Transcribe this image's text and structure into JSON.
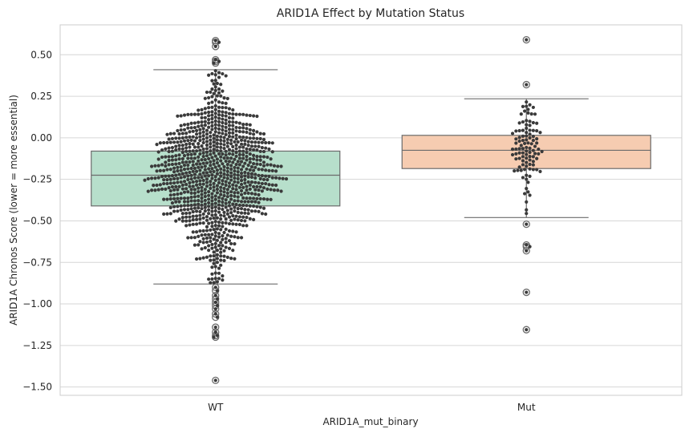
{
  "chart_data": {
    "type": "box",
    "title": "ARID1A Effect by Mutation Status",
    "xlabel": "ARID1A_mut_binary",
    "ylabel": "ARID1A Chronos Score (lower = more essential)",
    "ylim": [
      -1.55,
      0.68
    ],
    "yticks": [
      0.5,
      0.25,
      0.0,
      -0.25,
      -0.5,
      -0.75,
      -1.0,
      -1.25,
      -1.5
    ],
    "ytick_labels": [
      "0.50",
      "0.25",
      "0.00",
      "−0.25",
      "−0.50",
      "−0.75",
      "−1.00",
      "−1.25",
      "−1.50"
    ],
    "grid": "horizontal",
    "categories": [
      "WT",
      "Mut"
    ],
    "series": [
      {
        "category": "WT",
        "color": "#b7dfcb",
        "q1": -0.41,
        "median": -0.225,
        "q3": -0.08,
        "whisker_low": -0.88,
        "whisker_high": 0.41,
        "outliers": [
          0.585,
          0.575,
          0.55,
          0.47,
          0.46,
          0.45,
          -0.9,
          -0.92,
          -0.95,
          -0.97,
          -0.99,
          -1.01,
          -1.03,
          -1.06,
          -1.08,
          -1.14,
          -1.17,
          -1.19,
          -1.2,
          -1.46
        ],
        "n_points": 1000
      },
      {
        "category": "Mut",
        "color": "#f6ccb1",
        "q1": -0.185,
        "median": -0.075,
        "q3": 0.015,
        "whisker_low": -0.48,
        "whisker_high": 0.235,
        "outliers": [
          0.59,
          0.32,
          -0.52,
          -0.645,
          -0.655,
          -0.68,
          -0.93,
          -1.155
        ],
        "n_points": 110
      }
    ],
    "point_color": "#3a3a3a"
  }
}
